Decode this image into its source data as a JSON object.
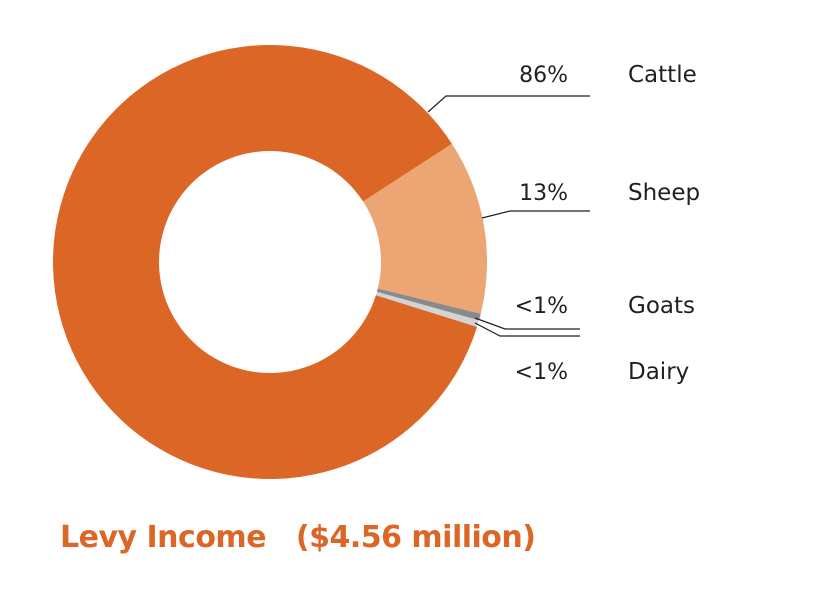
{
  "chart_data": {
    "type": "pie",
    "donut": true,
    "title": "Levy Income   ($4.56 million)",
    "slices": [
      {
        "label": "Cattle",
        "value": 86,
        "display": "86%",
        "color": "#dc6626"
      },
      {
        "label": "Sheep",
        "value": 13,
        "display": "13%",
        "color": "#eba673"
      },
      {
        "label": "Goats",
        "value": 0.5,
        "display": "<1%",
        "color": "#8a8a8c"
      },
      {
        "label": "Dairy",
        "value": 0.5,
        "display": "<1%",
        "color": "#d3d3d5"
      }
    ]
  }
}
